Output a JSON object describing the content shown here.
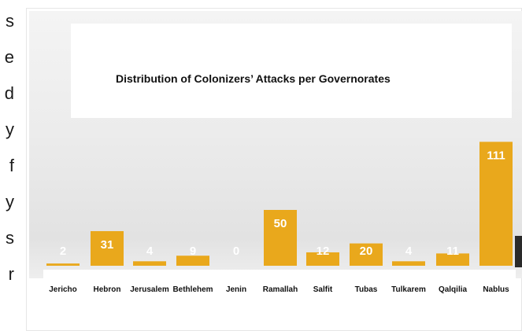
{
  "sidebar_text": {
    "letters": [
      "s",
      "e",
      "d",
      "y",
      "f",
      "y",
      "s",
      "r"
    ]
  },
  "chart_data": {
    "type": "bar",
    "title": "Distribution of Colonizers’ Attacks per Governorates",
    "categories": [
      "Jericho",
      "Hebron",
      "Jerusalem",
      "Bethlehem",
      "Jenin",
      "Ramallah",
      "Salfit",
      "Tubas",
      "Tulkarem",
      "Qalqilia",
      "Nablus"
    ],
    "values": [
      2,
      31,
      4,
      9,
      0,
      50,
      12,
      20,
      4,
      11,
      111
    ],
    "ylim": [
      0,
      125
    ],
    "grid": false,
    "legend": "none",
    "bar_color": "#e9a81c",
    "label_color": "#ffffff"
  }
}
